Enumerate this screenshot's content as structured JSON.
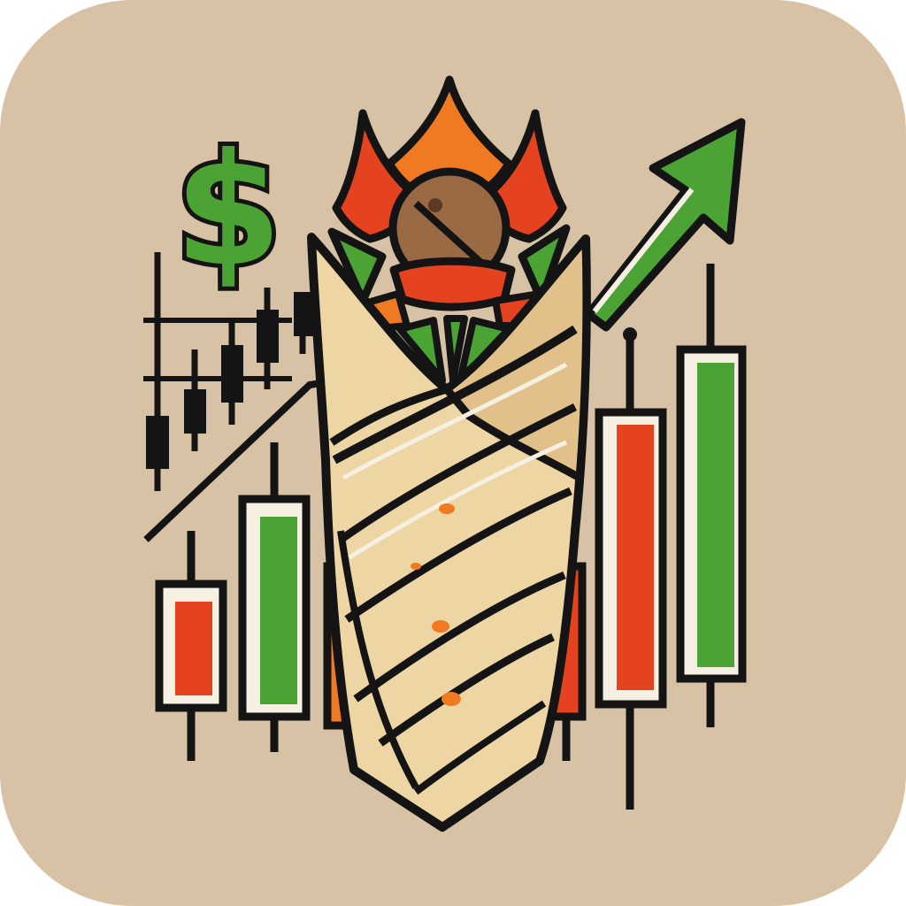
{
  "logo": {
    "symbol": "$",
    "icons": [
      "dollar-sign-icon",
      "trend-up-arrow-icon",
      "wrap-sandwich-icon",
      "candlestick-chart-icon"
    ],
    "colors": {
      "background": "#d8c2a6",
      "green": "#4ba334",
      "red": "#e5431f",
      "orange": "#ef7a21",
      "tortilla": "#eed6a4",
      "tortilla_shadow": "#e2c08a",
      "outline": "#141414",
      "meat": "#9a6a44",
      "white": "#f6f0e2"
    }
  }
}
